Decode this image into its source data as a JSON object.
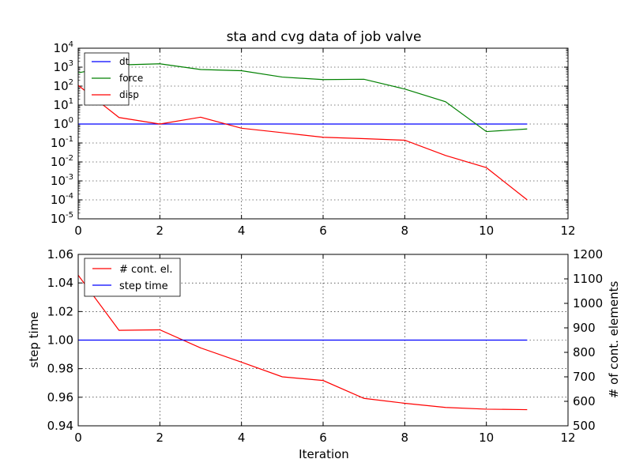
{
  "chart_data": [
    {
      "type": "line",
      "title": "sta and cvg data of job valve",
      "xlabel": "",
      "ylabel": "",
      "xlim": [
        0,
        12
      ],
      "ylim": [
        1e-05,
        10000.0
      ],
      "yscale": "log",
      "grid": true,
      "legend_position": "top-left",
      "x_ticks": [
        "0",
        "2",
        "4",
        "6",
        "8",
        "10",
        "12"
      ],
      "y_ticks": [
        {
          "base": "10",
          "exp": "4"
        },
        {
          "base": "10",
          "exp": "3"
        },
        {
          "base": "10",
          "exp": "2"
        },
        {
          "base": "10",
          "exp": "1"
        },
        {
          "base": "10",
          "exp": "0"
        },
        {
          "base": "10",
          "exp": "-1"
        },
        {
          "base": "10",
          "exp": "-2"
        },
        {
          "base": "10",
          "exp": "-3"
        },
        {
          "base": "10",
          "exp": "-4"
        },
        {
          "base": "10",
          "exp": "-5"
        }
      ],
      "x": [
        0,
        1,
        2,
        3,
        4,
        5,
        6,
        7,
        8,
        9,
        10,
        11
      ],
      "series": [
        {
          "name": "dt",
          "color": "#0000ff",
          "values": [
            1,
            1,
            1,
            1,
            1,
            1,
            1,
            1,
            1,
            1,
            1,
            1
          ]
        },
        {
          "name": "force",
          "color": "#008000",
          "values": [
            500,
            1300,
            1500,
            750,
            650,
            300,
            220,
            230,
            70,
            15,
            0.4,
            0.55
          ]
        },
        {
          "name": "disp",
          "color": "#ff0000",
          "values": [
            110,
            2.2,
            1.0,
            2.3,
            0.6,
            0.35,
            0.2,
            0.17,
            0.14,
            0.022,
            0.005,
            0.0001
          ]
        }
      ]
    },
    {
      "type": "line",
      "title": "",
      "xlabel": "Iteration",
      "ylabel": "step time",
      "ylabel_right": "# of cont. elements",
      "xlim": [
        0,
        12
      ],
      "ylim": [
        0.94,
        1.06
      ],
      "ylim_right": [
        500,
        1200
      ],
      "grid": true,
      "legend_position": "top-left",
      "x_ticks": [
        "0",
        "2",
        "4",
        "6",
        "8",
        "10",
        "12"
      ],
      "y_ticks": [
        "1.06",
        "1.04",
        "1.02",
        "1.00",
        "0.98",
        "0.96",
        "0.94"
      ],
      "y_ticks_right": [
        "1200",
        "1100",
        "1000",
        "900",
        "800",
        "700",
        "600",
        "500"
      ],
      "x": [
        0,
        1,
        2,
        3,
        4,
        5,
        6,
        7,
        8,
        9,
        10,
        11
      ],
      "series": [
        {
          "name": "# cont. el.",
          "color": "#ff0000",
          "axis": "right",
          "values": [
            1115,
            890,
            892,
            818,
            760,
            700,
            685,
            612,
            592,
            575,
            568,
            566
          ]
        },
        {
          "name": "step time",
          "color": "#0000ff",
          "axis": "left",
          "values": [
            1,
            1,
            1,
            1,
            1,
            1,
            1,
            1,
            1,
            1,
            1,
            1
          ]
        }
      ]
    }
  ]
}
